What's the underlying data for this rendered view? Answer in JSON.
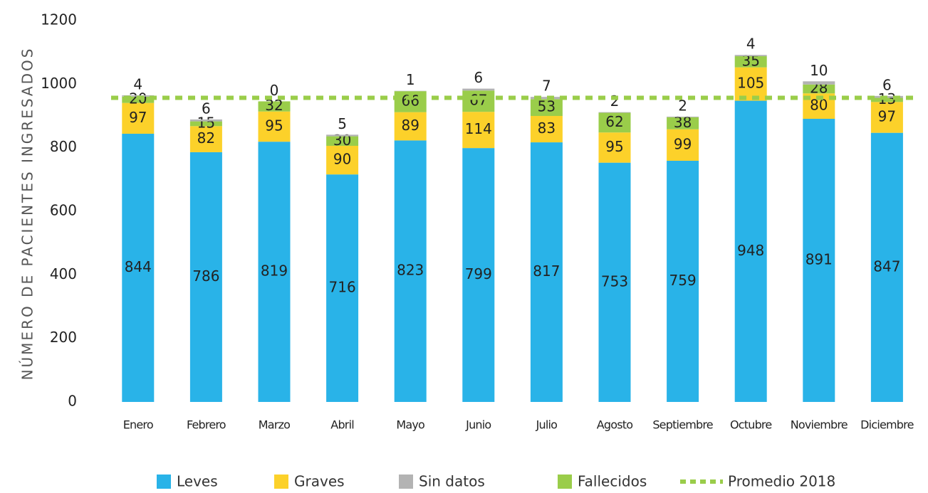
{
  "chart_data": {
    "type": "stacked_bar",
    "y_label": "NÚMERO DE PACIENTES INGRESADOS",
    "categories": [
      "Enero",
      "Febrero",
      "Marzo",
      "Abril",
      "Mayo",
      "Junio",
      "Julio",
      "Agosto",
      "Septiembre",
      "Octubre",
      "Noviembre",
      "Diciembre"
    ],
    "series": [
      {
        "name": "Leves",
        "color": "#29b3e8",
        "values": [
          844,
          786,
          819,
          716,
          823,
          799,
          817,
          753,
          759,
          948,
          891,
          847
        ]
      },
      {
        "name": "Graves",
        "color": "#fcd12a",
        "values": [
          97,
          82,
          95,
          90,
          89,
          114,
          83,
          95,
          99,
          105,
          80,
          97
        ]
      },
      {
        "name": "Fallecidos",
        "color": "#9acd4a",
        "values": [
          20,
          15,
          32,
          30,
          66,
          67,
          53,
          62,
          38,
          35,
          28,
          13
        ]
      },
      {
        "name": "Sin datos",
        "color": "#b3b3b3",
        "values": [
          4,
          6,
          0,
          5,
          1,
          6,
          7,
          2,
          2,
          4,
          10,
          6
        ]
      }
    ],
    "legend_order": [
      0,
      1,
      3,
      2
    ],
    "average": {
      "name": "Promedio 2018",
      "color": "#9acd4a",
      "value": 957
    },
    "ylim": [
      0,
      1200
    ],
    "yticks": [
      0,
      200,
      400,
      600,
      800,
      1000,
      1200
    ],
    "grid": false
  }
}
